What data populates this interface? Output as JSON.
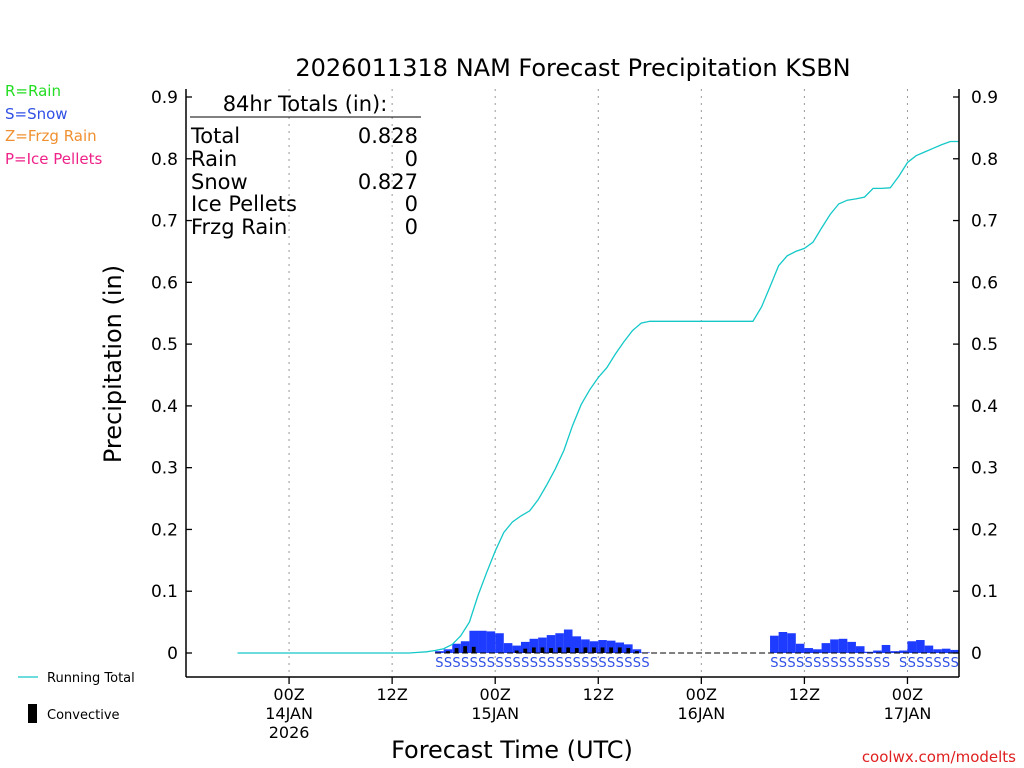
{
  "chart_data": {
    "type": "bar",
    "title": "2026011318 NAM Forecast Precipitation KSBN",
    "xlabel": "Forecast Time (UTC)",
    "ylabel": "Precipitation (in)",
    "ylim": [
      0,
      0.9
    ],
    "y_ticks": [
      0,
      0.1,
      0.2,
      0.3,
      0.4,
      0.5,
      0.6,
      0.7,
      0.8,
      0.9
    ],
    "y_tick_labels": [
      "0",
      "0.1",
      "0.2",
      "0.3",
      "0.4",
      "0.5",
      "0.6",
      "0.7",
      "0.8",
      "0.9"
    ],
    "x_unit": "forecast hour",
    "xlim": [
      -6,
      84
    ],
    "x_ticks": [
      {
        "hour": 6,
        "line1": "00Z",
        "line2": "14JAN",
        "line3": "2026"
      },
      {
        "hour": 18,
        "line1": "12Z",
        "line2": "",
        "line3": ""
      },
      {
        "hour": 30,
        "line1": "00Z",
        "line2": "15JAN",
        "line3": ""
      },
      {
        "hour": 42,
        "line1": "12Z",
        "line2": "",
        "line3": ""
      },
      {
        "hour": 54,
        "line1": "00Z",
        "line2": "16JAN",
        "line3": ""
      },
      {
        "hour": 66,
        "line1": "12Z",
        "line2": "",
        "line3": ""
      },
      {
        "hour": 78,
        "line1": "00Z",
        "line2": "17JAN",
        "line3": ""
      }
    ],
    "hourly_hours": [
      24,
      25,
      26,
      27,
      28,
      29,
      30,
      31,
      32,
      33,
      34,
      35,
      36,
      37,
      38,
      39,
      40,
      41,
      42,
      43,
      44,
      45,
      46,
      47,
      48,
      63,
      64,
      65,
      66,
      67,
      68,
      69,
      70,
      71,
      72,
      73,
      74,
      75,
      76,
      77,
      78,
      79,
      80,
      81,
      82,
      83,
      84
    ],
    "series": [
      {
        "name": "Snow",
        "color": "#1e3cff",
        "values": [
          0.003,
          0.006,
          0.015,
          0.019,
          0.036,
          0.036,
          0.035,
          0.032,
          0.016,
          0.012,
          0.018,
          0.023,
          0.025,
          0.029,
          0.032,
          0.038,
          0.027,
          0.022,
          0.019,
          0.021,
          0.02,
          0.017,
          0.014,
          0.006,
          0.001,
          0.028,
          0.034,
          0.032,
          0.015,
          0.008,
          0.006,
          0.016,
          0.022,
          0.023,
          0.018,
          0.011,
          0.002,
          0.004,
          0.013,
          0.003,
          0.004,
          0.019,
          0.021,
          0.012,
          0.006,
          0.007,
          0.005
        ]
      },
      {
        "name": "Convective",
        "color": "#000000",
        "values": [
          0,
          0.003,
          0.008,
          0.011,
          0.01,
          0,
          0,
          0,
          0,
          0.004,
          0.007,
          0.009,
          0.009,
          0.008,
          0.009,
          0.009,
          0.008,
          0.009,
          0.009,
          0.009,
          0.009,
          0.009,
          0.008,
          0.003,
          0,
          0,
          0,
          0,
          0,
          0,
          0,
          0,
          0,
          0,
          0,
          0,
          0,
          0,
          0,
          0,
          0,
          0,
          0,
          0,
          0,
          0,
          0
        ]
      }
    ],
    "running_total": {
      "name": "Running Total",
      "color": "#14c8c8",
      "hours": [
        0,
        20,
        21,
        22,
        23,
        24,
        25,
        26,
        27,
        28,
        29,
        30,
        31,
        32,
        33,
        34,
        35,
        36,
        37,
        38,
        39,
        40,
        41,
        42,
        43,
        44,
        45,
        46,
        47,
        48,
        49,
        60,
        61,
        62,
        63,
        64,
        65,
        66,
        67,
        68,
        69,
        70,
        71,
        72,
        73,
        74,
        75,
        76,
        77,
        78,
        79,
        80,
        81,
        82,
        83,
        84
      ],
      "values": [
        0,
        0,
        0.001,
        0.002,
        0.004,
        0.007,
        0.014,
        0.028,
        0.05,
        0.093,
        0.13,
        0.165,
        0.195,
        0.212,
        0.222,
        0.23,
        0.248,
        0.272,
        0.298,
        0.328,
        0.368,
        0.402,
        0.426,
        0.446,
        0.462,
        0.484,
        0.504,
        0.522,
        0.534,
        0.537,
        0.537,
        0.537,
        0.56,
        0.593,
        0.627,
        0.643,
        0.65,
        0.655,
        0.665,
        0.688,
        0.71,
        0.727,
        0.733,
        0.735,
        0.738,
        0.752,
        0.752,
        0.753,
        0.772,
        0.794,
        0.805,
        0.811,
        0.817,
        0.823,
        0.828,
        0.828
      ]
    },
    "precip_type_markers": {
      "symbol": "S",
      "color": "#3050e6",
      "hours": [
        24,
        25,
        26,
        27,
        28,
        29,
        30,
        31,
        32,
        33,
        34,
        35,
        36,
        37,
        38,
        39,
        40,
        41,
        42,
        43,
        44,
        45,
        46,
        47,
        48,
        63,
        64,
        65,
        66,
        67,
        68,
        69,
        70,
        71,
        72,
        73,
        74,
        75,
        76,
        78,
        79,
        80,
        81,
        82,
        83,
        84
      ]
    }
  },
  "totals_box": {
    "title": "84hr Totals (in):",
    "rows": [
      {
        "label": "Total",
        "value": "0.828"
      },
      {
        "label": "Rain",
        "value": "0"
      },
      {
        "label": "Snow",
        "value": "0.827"
      },
      {
        "label": "Ice Pellets",
        "value": "0"
      },
      {
        "label": "Frzg Rain",
        "value": "0"
      }
    ]
  },
  "type_legend": [
    {
      "text": "R=Rain",
      "color": "#22dd22"
    },
    {
      "text": "S=Snow",
      "color": "#3050e6"
    },
    {
      "text": "Z=Frzg Rain",
      "color": "#f09030"
    },
    {
      "text": "P=Ice Pellets",
      "color": "#ee2288"
    }
  ],
  "series_legend": [
    {
      "text": "Running Total",
      "kind": "line",
      "color": "#14c8c8"
    },
    {
      "text": "Convective",
      "kind": "bar",
      "color": "#000000"
    }
  ],
  "credit": {
    "text": "coolwx.com/modelts",
    "color": "#e02020"
  }
}
